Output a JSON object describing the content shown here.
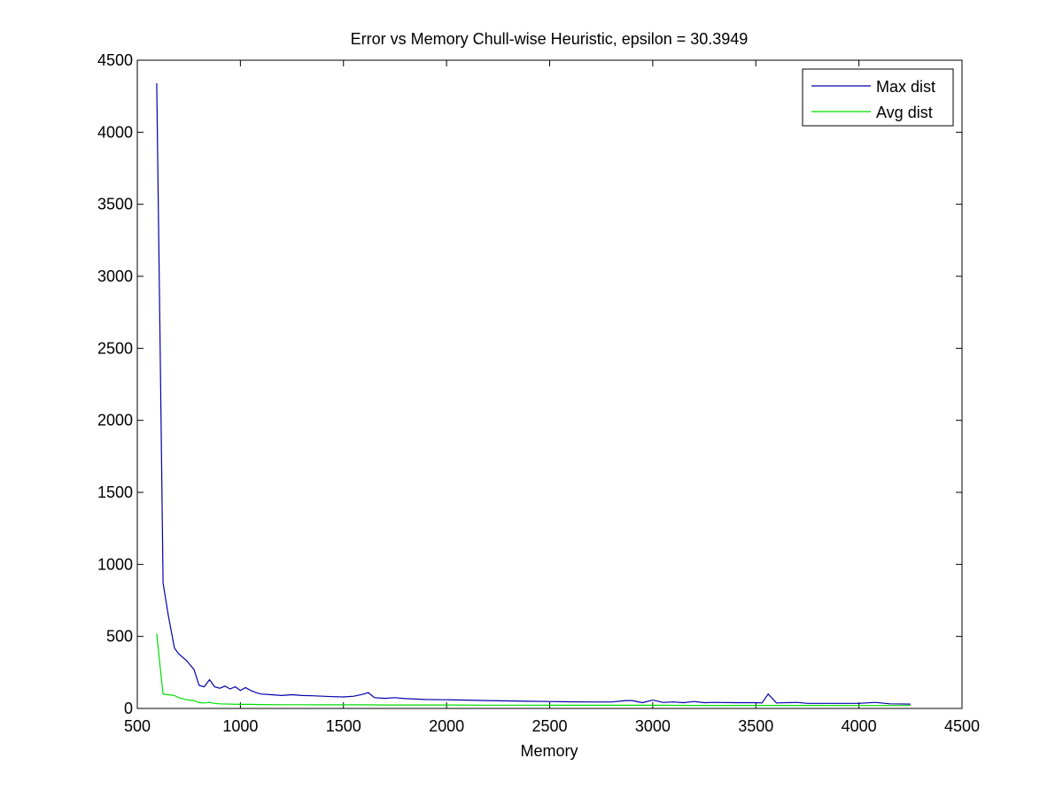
{
  "chart_data": {
    "type": "line",
    "title": "Error vs Memory Chull-wise Heuristic, epsilon = 30.3949",
    "xlabel": "Memory",
    "ylabel": "",
    "xlim": [
      500,
      4500
    ],
    "ylim": [
      0,
      4500
    ],
    "xticks": [
      500,
      1000,
      1500,
      2000,
      2500,
      3000,
      3500,
      4000,
      4500
    ],
    "yticks": [
      0,
      500,
      1000,
      1500,
      2000,
      2500,
      3000,
      3500,
      4000,
      4500
    ],
    "grid": false,
    "legend_position": "top-right",
    "series": [
      {
        "name": "Max dist",
        "color": "#0000aa",
        "x": [
          594,
          610,
          625,
          650,
          680,
          700,
          740,
          775,
          800,
          825,
          850,
          875,
          900,
          925,
          950,
          975,
          1000,
          1025,
          1050,
          1075,
          1100,
          1150,
          1200,
          1250,
          1300,
          1350,
          1400,
          1450,
          1500,
          1550,
          1600,
          1620,
          1650,
          1700,
          1750,
          1800,
          1900,
          2000,
          2100,
          2200,
          2300,
          2400,
          2500,
          2600,
          2700,
          2800,
          2870,
          2900,
          2950,
          3000,
          3050,
          3100,
          3150,
          3200,
          3250,
          3300,
          3400,
          3500,
          3530,
          3560,
          3600,
          3700,
          3750,
          3800,
          3900,
          4000,
          4080,
          4150,
          4250
        ],
        "y": [
          4340,
          2600,
          870,
          650,
          420,
          380,
          330,
          270,
          160,
          150,
          200,
          150,
          140,
          155,
          135,
          150,
          125,
          145,
          125,
          110,
          100,
          95,
          90,
          95,
          90,
          88,
          85,
          82,
          80,
          85,
          100,
          110,
          75,
          70,
          75,
          68,
          62,
          60,
          58,
          55,
          52,
          50,
          48,
          46,
          45,
          45,
          55,
          55,
          40,
          58,
          42,
          45,
          40,
          48,
          40,
          42,
          40,
          40,
          38,
          100,
          38,
          42,
          35,
          35,
          35,
          35,
          42,
          32,
          30
        ]
      },
      {
        "name": "Avg dist",
        "color": "#00dd00",
        "x": [
          594,
          610,
          625,
          650,
          680,
          700,
          740,
          775,
          800,
          825,
          850,
          875,
          900,
          950,
          1000,
          1050,
          1100,
          1200,
          1300,
          1400,
          1500,
          1600,
          1700,
          1800,
          1900,
          2000,
          2200,
          2400,
          2600,
          2800,
          3000,
          3200,
          3400,
          3600,
          3800,
          4000,
          4250
        ],
        "y": [
          520,
          300,
          100,
          95,
          90,
          75,
          60,
          55,
          40,
          38,
          42,
          35,
          32,
          30,
          28,
          28,
          27,
          26,
          26,
          25,
          25,
          25,
          24,
          24,
          24,
          24,
          23,
          23,
          22,
          22,
          22,
          21,
          21,
          21,
          21,
          20,
          20
        ]
      }
    ]
  }
}
